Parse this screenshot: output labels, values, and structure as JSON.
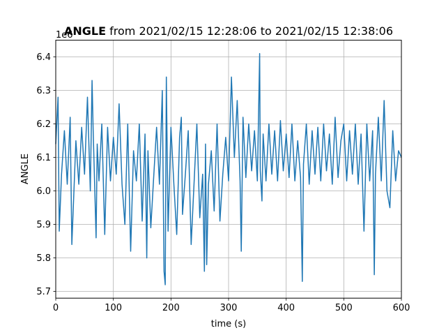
{
  "chart_data": {
    "type": "line",
    "title_bold": "ANGLE",
    "title_rest": " from 2021/02/15 12:28:06 to 2021/02/15 12:38:06",
    "xlabel": "time (s)",
    "ylabel": "ANGLE",
    "offset_text": "1e6",
    "xlim": [
      0,
      600
    ],
    "ylim": [
      5.68,
      6.45
    ],
    "y_scale_exponent": 6,
    "x_ticks": [
      0,
      100,
      200,
      300,
      400,
      500,
      600
    ],
    "x_tick_labels": [
      "0",
      "100",
      "200",
      "300",
      "400",
      "500",
      "600"
    ],
    "y_ticks": [
      5.7,
      5.8,
      5.9,
      6.0,
      6.1,
      6.2,
      6.3,
      6.4
    ],
    "y_tick_labels": [
      "5.7",
      "5.8",
      "5.9",
      "6.0",
      "6.1",
      "6.2",
      "6.3",
      "6.4"
    ],
    "grid": true,
    "series": [
      {
        "color": "#1f77b4",
        "x": [
          0,
          4,
          6,
          10,
          15,
          20,
          25,
          28,
          35,
          40,
          45,
          50,
          55,
          60,
          63,
          65,
          70,
          72,
          75,
          80,
          85,
          90,
          95,
          100,
          105,
          110,
          115,
          120,
          125,
          130,
          135,
          140,
          145,
          150,
          155,
          158,
          160,
          165,
          170,
          175,
          180,
          185,
          188,
          190,
          192,
          195,
          200,
          205,
          210,
          215,
          218,
          220,
          225,
          230,
          235,
          240,
          245,
          250,
          255,
          258,
          260,
          262,
          265,
          270,
          275,
          280,
          285,
          290,
          295,
          300,
          305,
          310,
          315,
          320,
          322,
          325,
          330,
          335,
          340,
          345,
          350,
          354,
          355,
          358,
          360,
          365,
          370,
          375,
          380,
          385,
          390,
          395,
          400,
          405,
          410,
          415,
          420,
          425,
          428,
          430,
          435,
          440,
          445,
          450,
          455,
          460,
          465,
          470,
          475,
          480,
          485,
          490,
          495,
          500,
          505,
          510,
          515,
          520,
          525,
          530,
          535,
          540,
          545,
          550,
          553,
          555,
          560,
          565,
          570,
          575,
          580,
          585,
          590,
          595,
          600
        ],
        "y": [
          6.14,
          6.28,
          5.88,
          6.05,
          6.18,
          6.02,
          6.22,
          5.84,
          6.15,
          6.02,
          6.19,
          6.05,
          6.28,
          6.0,
          6.33,
          6.18,
          5.86,
          6.14,
          6.03,
          6.2,
          5.87,
          6.19,
          6.03,
          6.16,
          6.05,
          6.26,
          6.02,
          5.9,
          6.2,
          5.82,
          6.12,
          6.03,
          6.2,
          5.91,
          6.17,
          5.8,
          6.12,
          5.89,
          6.04,
          6.19,
          6.02,
          6.3,
          5.76,
          5.72,
          6.34,
          5.88,
          6.19,
          6.02,
          5.87,
          6.16,
          6.22,
          5.93,
          6.05,
          6.18,
          5.84,
          6.02,
          6.2,
          5.92,
          6.05,
          5.76,
          6.14,
          5.78,
          6.02,
          6.12,
          5.94,
          6.2,
          5.91,
          6.05,
          6.16,
          6.03,
          6.34,
          6.1,
          6.27,
          6.03,
          5.82,
          6.22,
          6.04,
          6.2,
          6.06,
          6.18,
          6.03,
          6.41,
          6.06,
          5.97,
          6.17,
          6.03,
          6.2,
          6.05,
          6.18,
          6.03,
          6.21,
          6.06,
          6.17,
          6.04,
          6.2,
          6.03,
          6.15,
          6.04,
          5.73,
          6.08,
          6.2,
          6.02,
          6.18,
          6.05,
          6.19,
          6.03,
          6.2,
          6.06,
          6.17,
          6.02,
          6.22,
          6.04,
          6.15,
          6.2,
          6.03,
          6.18,
          6.05,
          6.2,
          6.02,
          6.17,
          5.88,
          6.2,
          6.03,
          6.18,
          5.75,
          6.05,
          6.22,
          6.03,
          6.27,
          6.0,
          5.95,
          6.18,
          6.03,
          6.12,
          6.1
        ]
      }
    ]
  }
}
